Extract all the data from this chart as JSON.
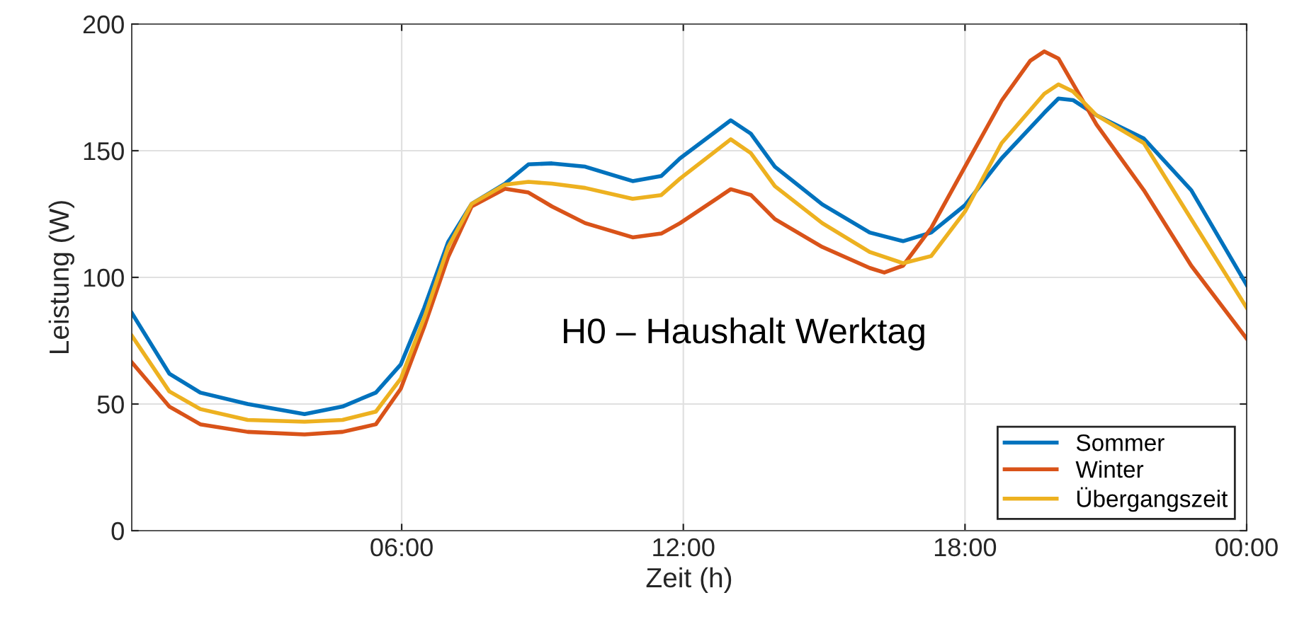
{
  "chart_data": {
    "type": "line",
    "xlabel": "Zeit (h)",
    "ylabel": "Leistung (W)",
    "annotations": [
      "H0 – Haushalt Werktag"
    ],
    "xlim": [
      0.25,
      24
    ],
    "xticks": [
      {
        "value": 6,
        "label": "06:00"
      },
      {
        "value": 12,
        "label": "12:00"
      },
      {
        "value": 18,
        "label": "18:00"
      },
      {
        "value": 24,
        "label": "00:00"
      }
    ],
    "ylim": [
      0,
      200
    ],
    "yticks": [
      0,
      50,
      100,
      150,
      200
    ],
    "grid": true,
    "legend": "bottom right",
    "line_style": "solid",
    "series": [
      {
        "name": "Sommer",
        "color": "#0072bd",
        "x": [
          0.25,
          1.05,
          1.71,
          2.72,
          3.93,
          4.74,
          5.45,
          5.98,
          6.48,
          6.99,
          7.49,
          8.2,
          8.7,
          9.2,
          9.91,
          10.92,
          11.53,
          11.93,
          13.01,
          13.44,
          13.95,
          14.96,
          15.97,
          16.68,
          17.28,
          18.0,
          18.78,
          19.69,
          19.99,
          20.3,
          20.8,
          21.81,
          22.82,
          24
        ],
        "values": [
          86,
          62,
          54.5,
          50,
          46,
          49,
          54.5,
          65.6,
          88,
          114,
          129,
          137,
          144.6,
          145,
          143.7,
          138,
          140,
          147,
          162,
          156.7,
          143.7,
          128.8,
          117.7,
          114.3,
          117.7,
          128.5,
          147,
          165,
          170.6,
          170,
          164,
          154.8,
          134.4,
          97
        ]
      },
      {
        "name": "Winter",
        "color": "#d95319",
        "x": [
          0.25,
          1.05,
          1.71,
          2.72,
          3.93,
          4.74,
          5.45,
          5.98,
          6.48,
          6.99,
          7.49,
          8.2,
          8.7,
          9.2,
          9.91,
          10.92,
          11.53,
          11.93,
          13.01,
          13.44,
          13.95,
          14.96,
          15.97,
          16.28,
          16.68,
          17.28,
          18.0,
          18.78,
          19.39,
          19.69,
          19.99,
          20.8,
          21.81,
          22.82,
          24
        ],
        "values": [
          66.5,
          49,
          42,
          39,
          38,
          39,
          42,
          56,
          80.5,
          108,
          128,
          135,
          133.5,
          128,
          121.4,
          115.8,
          117.3,
          121.4,
          134.8,
          132.5,
          123,
          112,
          103.7,
          101.9,
          104.6,
          119.5,
          143.7,
          169.7,
          185.5,
          189.2,
          186.4,
          160.4,
          134.4,
          104.6,
          75.8
        ]
      },
      {
        "name": "Übergangszeit",
        "color": "#edb120",
        "x": [
          0.25,
          1.05,
          1.71,
          2.72,
          3.93,
          4.74,
          5.45,
          5.98,
          6.48,
          6.99,
          7.49,
          8.2,
          8.7,
          9.2,
          9.91,
          10.92,
          11.53,
          11.93,
          13.01,
          13.44,
          13.95,
          14.96,
          15.97,
          16.68,
          17.28,
          18.0,
          18.78,
          19.69,
          19.99,
          20.3,
          20.8,
          21.81,
          22.82,
          24
        ],
        "values": [
          77,
          55,
          48,
          43.7,
          43,
          43.7,
          47,
          60,
          84,
          112,
          129,
          136.6,
          137.7,
          137,
          135.3,
          131,
          132.5,
          139,
          154.5,
          149,
          136,
          121.4,
          110,
          105.6,
          108.4,
          126,
          153,
          172.5,
          176.2,
          173.4,
          164,
          153,
          123,
          88
        ]
      }
    ]
  }
}
